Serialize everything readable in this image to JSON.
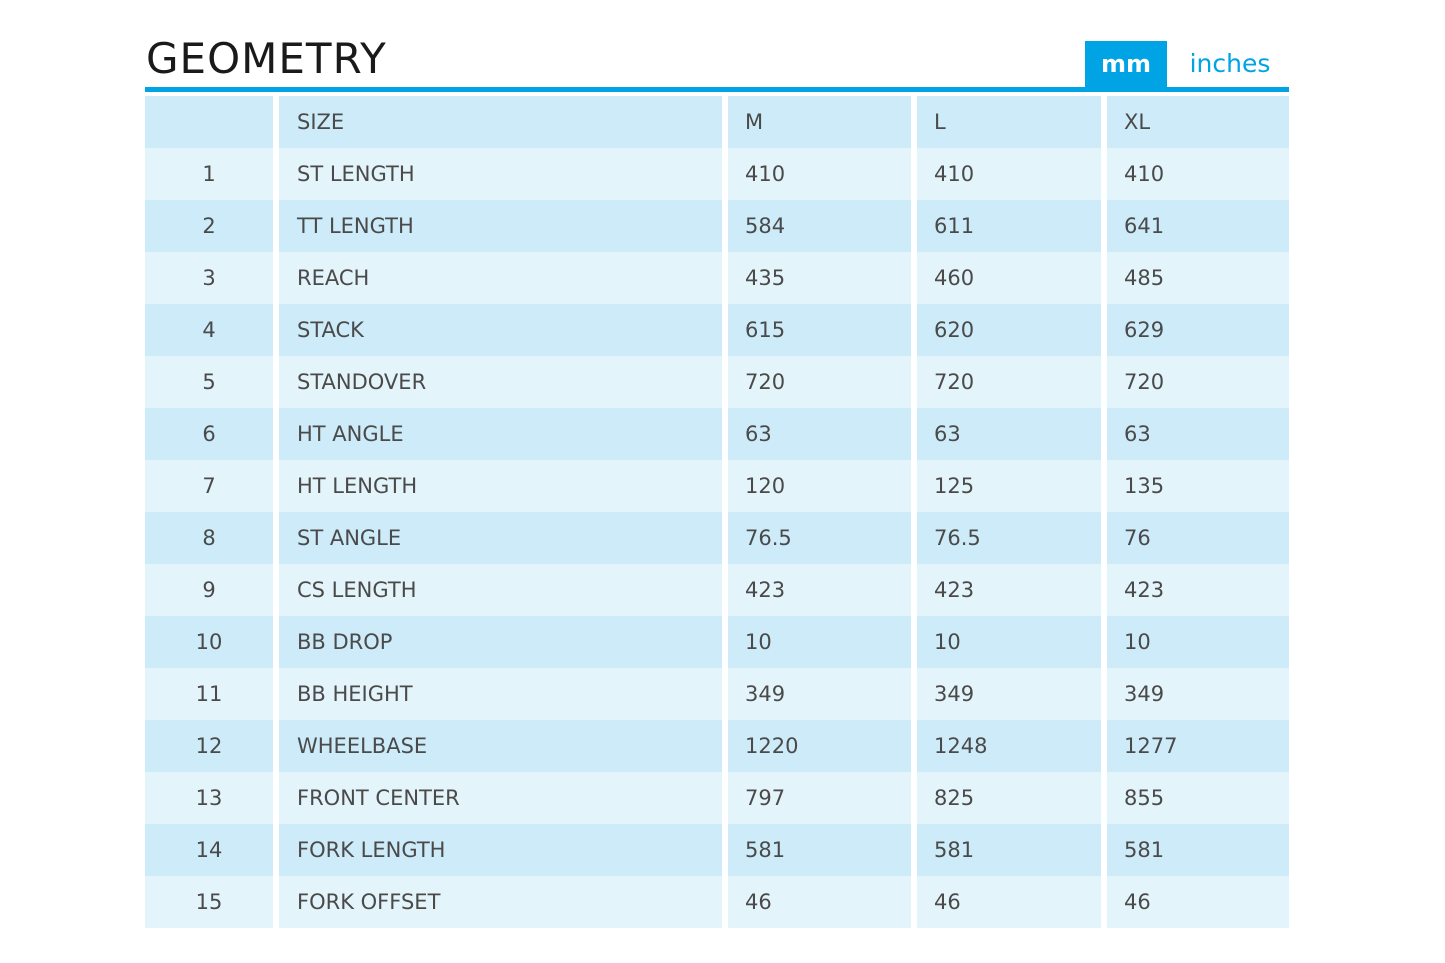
{
  "header": {
    "title": "GEOMETRY",
    "units": [
      "mm",
      "inches"
    ]
  },
  "table": {
    "columns": [
      "SIZE",
      "M",
      "L",
      "XL"
    ],
    "rows": [
      [
        "1",
        "ST LENGTH",
        "410",
        "410",
        "410"
      ],
      [
        "2",
        "TT LENGTH",
        "584",
        "611",
        "641"
      ],
      [
        "3",
        "REACH",
        "435",
        "460",
        "485"
      ],
      [
        "4",
        "STACK",
        "615",
        "620",
        "629"
      ],
      [
        "5",
        "STANDOVER",
        "720",
        "720",
        "720"
      ],
      [
        "6",
        "HT ANGLE",
        "63",
        "63",
        "63"
      ],
      [
        "7",
        "HT LENGTH",
        "120",
        "125",
        "135"
      ],
      [
        "8",
        "ST ANGLE",
        "76.5",
        "76.5",
        "76"
      ],
      [
        "9",
        "CS LENGTH",
        "423",
        "423",
        "423"
      ],
      [
        "10",
        "BB DROP",
        "10",
        "10",
        "10"
      ],
      [
        "11",
        "BB HEIGHT",
        "349",
        "349",
        "349"
      ],
      [
        "12",
        "WHEELBASE",
        "1220",
        "1248",
        "1277"
      ],
      [
        "13",
        "FRONT CENTER",
        "797",
        "825",
        "855"
      ],
      [
        "14",
        "FORK LENGTH",
        "581",
        "581",
        "581"
      ],
      [
        "15",
        "FORK OFFSET",
        "46",
        "46",
        "46"
      ]
    ]
  }
}
